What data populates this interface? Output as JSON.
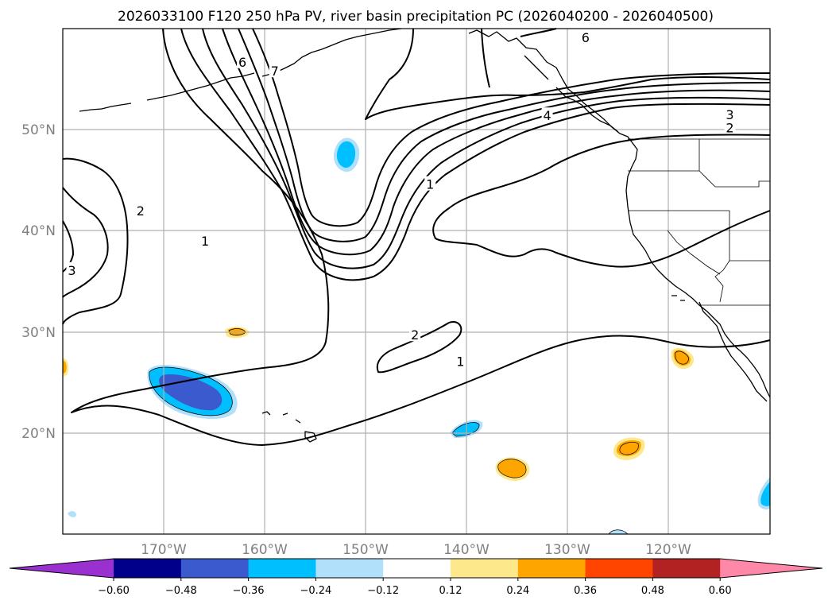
{
  "title": "2026033100 F120 250 hPa PV, river basin precipitation PC (2026040200 - 2026040500)",
  "map": {
    "lon_ticks": [
      "170°W",
      "160°W",
      "150°W",
      "140°W",
      "130°W",
      "120°W"
    ],
    "lat_ticks": [
      "50°N",
      "40°N",
      "30°N",
      "20°N"
    ],
    "grid": true
  },
  "pv_contour_labels": [
    {
      "text": "6",
      "lon": -162.2,
      "lat": 56.7
    },
    {
      "text": "7",
      "lon": -159.0,
      "lat": 55.8
    },
    {
      "text": "6",
      "lon": -128.2,
      "lat": 59.1
    },
    {
      "text": "4",
      "lon": -132.0,
      "lat": 51.4
    },
    {
      "text": "3",
      "lon": -113.9,
      "lat": 51.5
    },
    {
      "text": "2",
      "lon": -113.9,
      "lat": 50.2
    },
    {
      "text": "1",
      "lon": -143.6,
      "lat": 44.6
    },
    {
      "text": "2",
      "lon": -172.3,
      "lat": 42.0
    },
    {
      "text": "1",
      "lon": -165.9,
      "lat": 39.0
    },
    {
      "text": "3",
      "lon": -179.1,
      "lat": 36.1
    },
    {
      "text": "2",
      "lon": -145.1,
      "lat": 29.7
    },
    {
      "text": "1",
      "lon": -140.6,
      "lat": 27.1
    }
  ],
  "colorbar": {
    "ticks": [
      "−0.60",
      "−0.48",
      "−0.36",
      "−0.24",
      "−0.12",
      "0.12",
      "0.24",
      "0.36",
      "0.48",
      "0.60"
    ],
    "colors": [
      "#9b30d0",
      "#00008b",
      "#3a5acd",
      "#00bfff",
      "#b0e0fa",
      "#ffffff",
      "#fde98c",
      "#ffa500",
      "#ff4500",
      "#b22222",
      "#ff88a8"
    ]
  }
}
